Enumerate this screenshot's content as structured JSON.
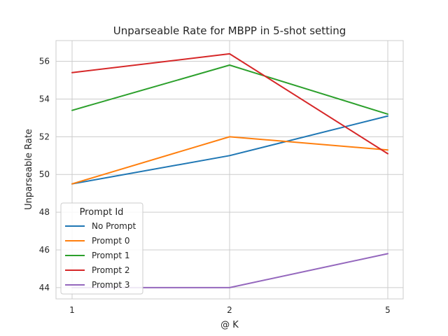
{
  "chart_data": {
    "type": "line",
    "title": "Unparseable Rate for MBPP in 5-shot setting",
    "xlabel": "@ K",
    "ylabel": "Unparseable Rate",
    "categories": [
      "1",
      "2",
      "5"
    ],
    "ylim": [
      43.4,
      57.1
    ],
    "yticks": [
      44,
      46,
      48,
      50,
      52,
      54,
      56
    ],
    "grid": true,
    "legend": {
      "title": "Prompt Id",
      "placement": "lower-left"
    },
    "series": [
      {
        "name": "No Prompt",
        "color": "#1f77b4",
        "values": [
          49.5,
          51.0,
          53.1
        ]
      },
      {
        "name": "Prompt 0",
        "color": "#ff7f0e",
        "values": [
          49.5,
          52.0,
          51.3
        ]
      },
      {
        "name": "Prompt 1",
        "color": "#2ca02c",
        "values": [
          53.4,
          55.8,
          53.2
        ]
      },
      {
        "name": "Prompt 2",
        "color": "#d62728",
        "values": [
          55.4,
          56.4,
          51.1
        ]
      },
      {
        "name": "Prompt 3",
        "color": "#9467bd",
        "values": [
          44.0,
          44.0,
          45.8
        ]
      }
    ]
  }
}
